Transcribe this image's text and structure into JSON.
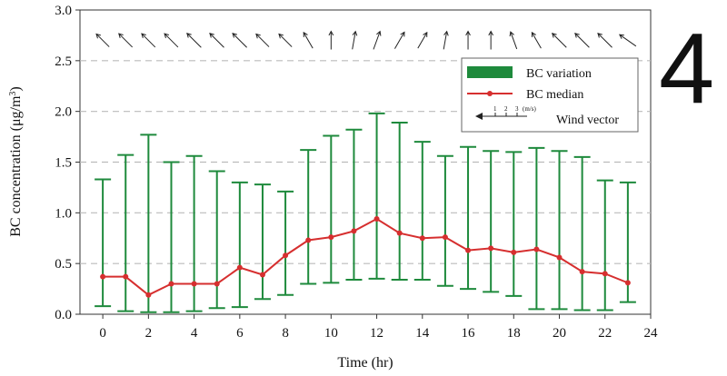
{
  "panel_label": "4",
  "chart_data": {
    "type": "line",
    "xlabel": "Time (hr)",
    "ylabel": "BC concentration (μg/m3)",
    "ylabel_main": "BC concentration (μg/m",
    "ylabel_sup": "3",
    "ylabel_end": ")",
    "xlim": [
      -1,
      24
    ],
    "ylim": [
      0,
      3.0
    ],
    "x_ticks": [
      0,
      2,
      4,
      6,
      8,
      10,
      12,
      14,
      16,
      18,
      20,
      22,
      24
    ],
    "x_tick_labels": [
      "0",
      "2",
      "4",
      "6",
      "8",
      "10",
      "12",
      "14",
      "16",
      "18",
      "20",
      "22",
      "24"
    ],
    "y_ticks": [
      0,
      0.5,
      1.0,
      1.5,
      2.0,
      2.5,
      3.0
    ],
    "y_tick_labels": [
      "0.0",
      "0.5",
      "1.0",
      "1.5",
      "2.0",
      "2.5",
      "3.0"
    ],
    "grid": "horizontal dashed",
    "legend_position": "top-right",
    "legend": {
      "variation_label": "BC variation",
      "median_label": "BC median",
      "wind_label": "Wind vector",
      "wind_scale_ticks": [
        "1",
        "2",
        "3"
      ],
      "wind_scale_unit": "(m/s)"
    },
    "colors": {
      "variation": "#1e8a3c",
      "median": "#d62f2f",
      "grid": "#bbbbbb",
      "wind": "#222222"
    },
    "hours": [
      0,
      1,
      2,
      3,
      4,
      5,
      6,
      7,
      8,
      9,
      10,
      11,
      12,
      13,
      14,
      15,
      16,
      17,
      18,
      19,
      20,
      21,
      22,
      23
    ],
    "series": [
      {
        "name": "BC median",
        "values": [
          0.37,
          0.37,
          0.19,
          0.3,
          0.3,
          0.3,
          0.46,
          0.39,
          0.58,
          0.73,
          0.76,
          0.82,
          0.94,
          0.8,
          0.75,
          0.76,
          0.63,
          0.65,
          0.61,
          0.64,
          0.56,
          0.42,
          0.4,
          0.31
        ]
      },
      {
        "name": "BC variation",
        "min": [
          0.08,
          0.03,
          0.02,
          0.02,
          0.03,
          0.06,
          0.07,
          0.15,
          0.19,
          0.3,
          0.31,
          0.34,
          0.35,
          0.34,
          0.34,
          0.28,
          0.25,
          0.22,
          0.18,
          0.05,
          0.05,
          0.04,
          0.04,
          0.12
        ],
        "max": [
          1.33,
          1.57,
          1.77,
          1.5,
          1.56,
          1.41,
          1.3,
          1.28,
          1.21,
          1.62,
          1.76,
          1.82,
          1.98,
          1.89,
          1.7,
          1.56,
          1.65,
          1.61,
          1.6,
          1.64,
          1.61,
          1.55,
          1.32,
          1.3
        ]
      }
    ],
    "wind_vectors": {
      "y_level": 2.7,
      "directions_deg": [
        135,
        135,
        135,
        135,
        135,
        135,
        135,
        135,
        135,
        120,
        90,
        80,
        70,
        60,
        60,
        80,
        90,
        90,
        110,
        120,
        135,
        135,
        135,
        145
      ],
      "speeds": [
        2.0,
        2.1,
        2.1,
        2.1,
        2.2,
        2.2,
        2.2,
        2.0,
        2.0,
        2.0,
        2.0,
        2.0,
        2.1,
        2.1,
        2.0,
        2.0,
        2.0,
        2.0,
        2.0,
        2.0,
        2.2,
        2.2,
        2.2,
        2.2
      ]
    }
  }
}
